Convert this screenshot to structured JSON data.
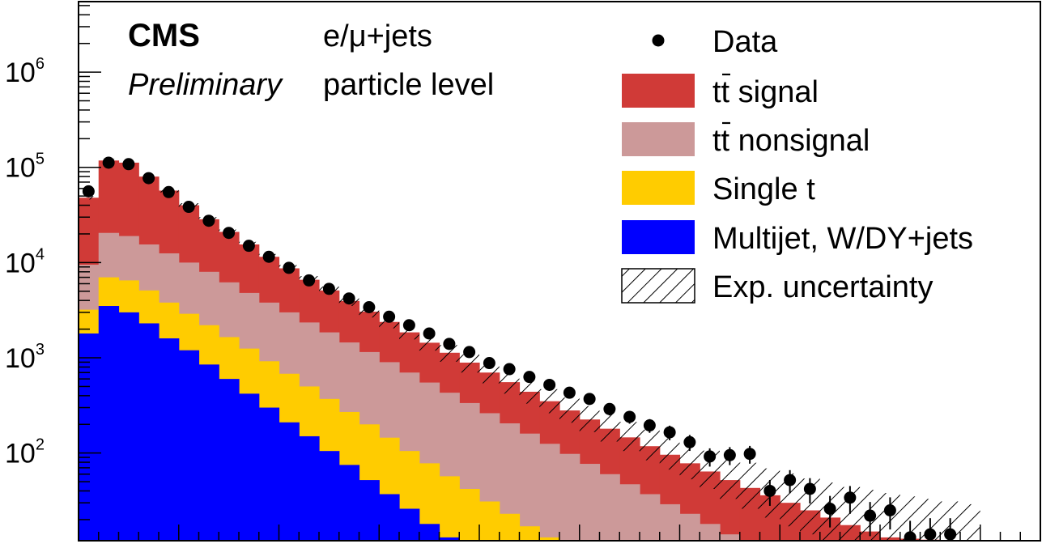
{
  "chart_data": {
    "type": "histogram",
    "y_scale": "log",
    "ylim": [
      12,
      5500000
    ],
    "n_bins": 48,
    "annotations": {
      "experiment": "CMS",
      "status": "Preliminary",
      "channel": "e/μ+jets",
      "level": "particle level"
    },
    "y_tick_labels": [
      {
        "value": 100,
        "base": "10",
        "exp": "2"
      },
      {
        "value": 1000,
        "base": "10",
        "exp": "3"
      },
      {
        "value": 10000,
        "base": "10",
        "exp": "4"
      },
      {
        "value": 100000,
        "base": "10",
        "exp": "5"
      },
      {
        "value": 1000000,
        "base": "10",
        "exp": "6"
      }
    ],
    "legend": [
      {
        "key": "data",
        "label": "Data"
      },
      {
        "key": "ttsig",
        "label": "tt signal",
        "color": "#d03a37"
      },
      {
        "key": "ttnon",
        "label": "tt nonsignal",
        "color": "#cc9999"
      },
      {
        "key": "singlet",
        "label": "Single t",
        "color": "#ffcc00"
      },
      {
        "key": "multijet",
        "label": "Multijet, W/DY+jets",
        "color": "#0000ff"
      },
      {
        "key": "unc",
        "label": "Exp. uncertainty"
      }
    ],
    "series": [
      {
        "key": "multijet",
        "name": "Multijet, W/DY+jets",
        "color": "#0000ff",
        "values": [
          1800,
          3500,
          3000,
          2300,
          1600,
          1200,
          850,
          600,
          420,
          300,
          210,
          150,
          105,
          75,
          52,
          37,
          26,
          18,
          13,
          12,
          12,
          12,
          12,
          12,
          12,
          12,
          12,
          12,
          12,
          12,
          12,
          12,
          12,
          12,
          12,
          12,
          12,
          12,
          12,
          12,
          12,
          12,
          12,
          12,
          12,
          12,
          12,
          12
        ]
      },
      {
        "key": "singlet",
        "name": "Single t",
        "color": "#ffcc00",
        "values": [
          3200,
          7000,
          6500,
          5100,
          3800,
          2900,
          2200,
          1650,
          1250,
          920,
          680,
          500,
          370,
          270,
          200,
          145,
          105,
          78,
          57,
          42,
          31,
          23,
          17,
          13,
          12,
          12,
          12,
          12,
          12,
          12,
          12,
          12,
          12,
          12,
          12,
          12,
          12,
          12,
          12,
          12,
          12,
          12,
          12,
          12,
          12,
          12,
          12,
          12
        ]
      },
      {
        "key": "ttnon",
        "name": "tt nonsignal",
        "color": "#cc9999",
        "values": [
          9500,
          20500,
          19000,
          15500,
          12500,
          10000,
          8000,
          6200,
          4800,
          3800,
          3000,
          2350,
          1850,
          1450,
          1150,
          900,
          700,
          550,
          430,
          335,
          262,
          205,
          160,
          125,
          98,
          77,
          60,
          47,
          37,
          29,
          23,
          18,
          14,
          12,
          12,
          12,
          12,
          12,
          12,
          12,
          12,
          12,
          12,
          12,
          12,
          12,
          12,
          12
        ]
      },
      {
        "key": "ttsig",
        "name": "tt signal",
        "color": "#d03a37",
        "values": [
          48000,
          118000,
          112000,
          80000,
          57000,
          40000,
          28500,
          21000,
          15500,
          11500,
          8700,
          6600,
          5100,
          3950,
          3050,
          2380,
          1850,
          1440,
          1130,
          890,
          700,
          555,
          440,
          350,
          280,
          225,
          180,
          146,
          118,
          96,
          78,
          64,
          52,
          43,
          36,
          30,
          25,
          21,
          17.5,
          15,
          13,
          12.6,
          12.3,
          12.1,
          12,
          12,
          12,
          12
        ]
      }
    ],
    "uncertainty": {
      "up": [
        50000,
        122000,
        116000,
        83000,
        59500,
        42000,
        30000,
        22200,
        16500,
        12300,
        9400,
        7200,
        5600,
        4400,
        3450,
        2720,
        2150,
        1700,
        1360,
        1090,
        880,
        710,
        575,
        468,
        382,
        312,
        256,
        212,
        176,
        148,
        125,
        106,
        91,
        79,
        69,
        61,
        54,
        49,
        44,
        41,
        38,
        35,
        33,
        31,
        29,
        0,
        0,
        0
      ],
      "down": [
        46000,
        114000,
        108000,
        77000,
        54500,
        38000,
        27000,
        19800,
        14500,
        10700,
        8000,
        6000,
        4600,
        3500,
        2650,
        2040,
        1560,
        1190,
        910,
        700,
        540,
        420,
        330,
        262,
        208,
        166,
        132,
        105,
        84,
        67,
        53,
        42,
        33,
        26,
        21,
        17,
        14,
        12,
        12,
        12,
        12,
        12,
        12,
        12,
        12,
        0,
        0,
        0
      ]
    },
    "data": {
      "label": "Data",
      "values": [
        56000,
        112000,
        108000,
        77000,
        55000,
        38500,
        27500,
        20500,
        15000,
        11500,
        8800,
        6500,
        5300,
        4200,
        3400,
        2700,
        2200,
        1800,
        1400,
        1150,
        880,
        760,
        630,
        520,
        430,
        370,
        290,
        240,
        195,
        165,
        130,
        92,
        95,
        98,
        40,
        52,
        42,
        26,
        34,
        22,
        25,
        13,
        14,
        14,
        null,
        null,
        null,
        null
      ]
    }
  }
}
